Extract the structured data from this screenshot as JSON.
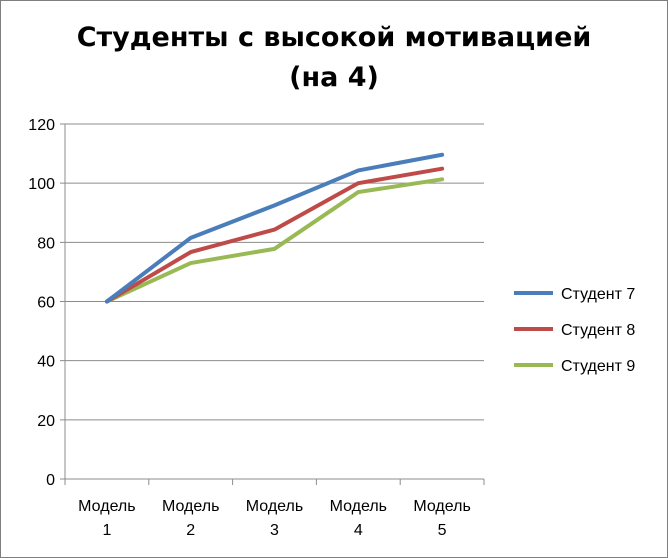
{
  "chart_data": {
    "type": "line",
    "title_line1": "Студенты с высокой мотивацией",
    "title_line2": "(на 4)",
    "categories": [
      [
        "Модель",
        "1"
      ],
      [
        "Модель",
        "2"
      ],
      [
        "Модель",
        "3"
      ],
      [
        "Модель",
        "4"
      ],
      [
        "Модель",
        "5"
      ]
    ],
    "y_ticks": [
      "0",
      "20",
      "40",
      "60",
      "80",
      "100",
      "120"
    ],
    "ylim": [
      0,
      120
    ],
    "grid": true,
    "legend_position": "right",
    "series": [
      {
        "name": "Студент 7",
        "color": "#4a7ebb",
        "values": [
          60,
          81.5,
          92.5,
          104.3,
          109.6
        ]
      },
      {
        "name": "Студент 8",
        "color": "#be4b48",
        "values": [
          60,
          76.7,
          84.3,
          100.0,
          104.9
        ]
      },
      {
        "name": "Студент 9",
        "color": "#98b954",
        "values": [
          60,
          73.0,
          77.8,
          97.0,
          101.3
        ]
      }
    ]
  }
}
